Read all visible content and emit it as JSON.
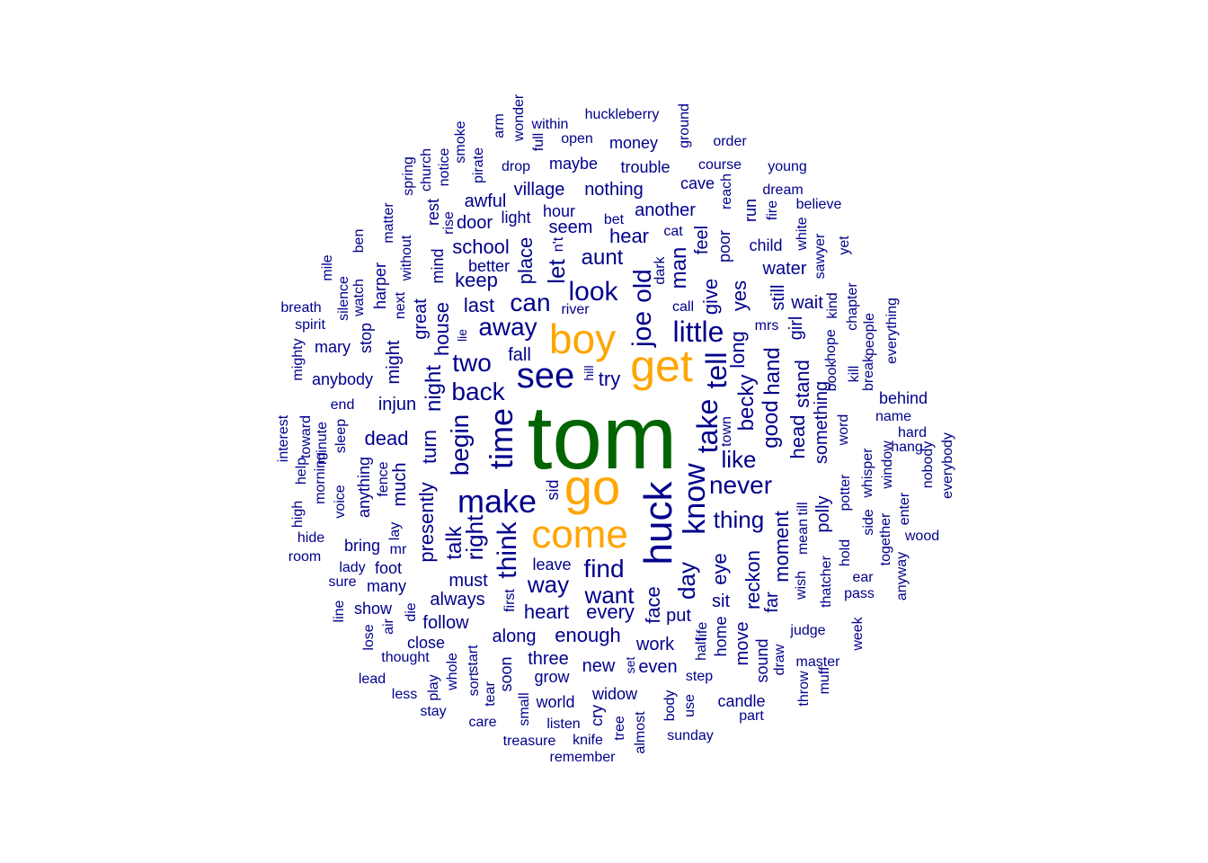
{
  "colors": {
    "top": "#006400",
    "high": "#FFA500",
    "rest": "#00008B"
  },
  "words": [
    {
      "text": "tom",
      "tier": "top"
    },
    {
      "text": "get",
      "tier": "high"
    },
    {
      "text": "go",
      "tier": "high"
    },
    {
      "text": "come",
      "tier": "high"
    },
    {
      "text": "boy",
      "tier": "high"
    },
    {
      "text": "huck",
      "tier": "rest"
    },
    {
      "text": "see",
      "tier": "rest"
    },
    {
      "text": "make",
      "tier": "rest"
    },
    {
      "text": "know",
      "tier": "rest"
    },
    {
      "text": "time",
      "tier": "rest"
    },
    {
      "text": "take",
      "tier": "rest"
    },
    {
      "text": "tell",
      "tier": "rest"
    },
    {
      "text": "joe",
      "tier": "rest"
    },
    {
      "text": "old",
      "tier": "rest"
    },
    {
      "text": "little",
      "tier": "rest"
    },
    {
      "text": "think",
      "tier": "rest"
    },
    {
      "text": "look",
      "tier": "rest"
    },
    {
      "text": "can",
      "tier": "rest"
    },
    {
      "text": "away",
      "tier": "rest"
    },
    {
      "text": "two",
      "tier": "rest"
    },
    {
      "text": "back",
      "tier": "rest"
    },
    {
      "text": "begin",
      "tier": "rest"
    },
    {
      "text": "like",
      "tier": "rest"
    },
    {
      "text": "never",
      "tier": "rest"
    },
    {
      "text": "find",
      "tier": "rest"
    },
    {
      "text": "way",
      "tier": "rest"
    },
    {
      "text": "right",
      "tier": "rest"
    },
    {
      "text": "want",
      "tier": "rest"
    },
    {
      "text": "thing",
      "tier": "rest"
    },
    {
      "text": "good",
      "tier": "rest"
    },
    {
      "text": "hand",
      "tier": "rest"
    },
    {
      "text": "becky",
      "tier": "rest"
    },
    {
      "text": "long",
      "tier": "rest"
    },
    {
      "text": "yes",
      "tier": "rest"
    },
    {
      "text": "give",
      "tier": "rest"
    },
    {
      "text": "man",
      "tier": "rest"
    },
    {
      "text": "let",
      "tier": "rest"
    },
    {
      "text": "aunt",
      "tier": "rest"
    },
    {
      "text": "hear",
      "tier": "rest"
    },
    {
      "text": "night",
      "tier": "rest"
    },
    {
      "text": "turn",
      "tier": "rest"
    },
    {
      "text": "talk",
      "tier": "rest"
    },
    {
      "text": "day",
      "tier": "rest"
    },
    {
      "text": "face",
      "tier": "rest"
    },
    {
      "text": "every",
      "tier": "rest"
    },
    {
      "text": "heart",
      "tier": "rest"
    },
    {
      "text": "head",
      "tier": "rest"
    },
    {
      "text": "stand",
      "tier": "rest"
    },
    {
      "text": "moment",
      "tier": "rest"
    },
    {
      "text": "reckon",
      "tier": "rest"
    },
    {
      "text": "eye",
      "tier": "rest"
    },
    {
      "text": "place",
      "tier": "rest"
    },
    {
      "text": "school",
      "tier": "rest"
    },
    {
      "text": "keep",
      "tier": "rest"
    },
    {
      "text": "last",
      "tier": "rest"
    },
    {
      "text": "presently",
      "tier": "rest"
    },
    {
      "text": "house",
      "tier": "rest"
    },
    {
      "text": "dead",
      "tier": "rest"
    },
    {
      "text": "injun",
      "tier": "rest"
    },
    {
      "text": "much",
      "tier": "rest"
    },
    {
      "text": "great",
      "tier": "rest"
    },
    {
      "text": "might",
      "tier": "rest"
    },
    {
      "text": "try",
      "tier": "rest"
    },
    {
      "text": "fall",
      "tier": "rest"
    },
    {
      "text": "sid",
      "tier": "rest"
    },
    {
      "text": "must",
      "tier": "rest"
    },
    {
      "text": "always",
      "tier": "rest"
    },
    {
      "text": "leave",
      "tier": "rest"
    },
    {
      "text": "follow",
      "tier": "rest"
    },
    {
      "text": "along",
      "tier": "rest"
    },
    {
      "text": "enough",
      "tier": "rest"
    },
    {
      "text": "work",
      "tier": "rest"
    },
    {
      "text": "three",
      "tier": "rest"
    },
    {
      "text": "new",
      "tier": "rest"
    },
    {
      "text": "even",
      "tier": "rest"
    },
    {
      "text": "put",
      "tier": "rest"
    },
    {
      "text": "sit",
      "tier": "rest"
    },
    {
      "text": "far",
      "tier": "rest"
    },
    {
      "text": "something",
      "tier": "rest"
    },
    {
      "text": "polly",
      "tier": "rest"
    },
    {
      "text": "still",
      "tier": "rest"
    },
    {
      "text": "girl",
      "tier": "rest"
    },
    {
      "text": "wait",
      "tier": "rest"
    },
    {
      "text": "water",
      "tier": "rest"
    },
    {
      "text": "child",
      "tier": "rest"
    },
    {
      "text": "poor",
      "tier": "rest"
    },
    {
      "text": "feel",
      "tier": "rest"
    },
    {
      "text": "another",
      "tier": "rest"
    },
    {
      "text": "nothing",
      "tier": "rest"
    },
    {
      "text": "village",
      "tier": "rest"
    },
    {
      "text": "awful",
      "tier": "rest"
    },
    {
      "text": "door",
      "tier": "rest"
    },
    {
      "text": "light",
      "tier": "rest"
    },
    {
      "text": "hour",
      "tier": "rest"
    },
    {
      "text": "seem",
      "tier": "rest"
    },
    {
      "text": "better",
      "tier": "rest"
    },
    {
      "text": "mind",
      "tier": "rest"
    },
    {
      "text": "rest",
      "tier": "rest"
    },
    {
      "text": "rise",
      "tier": "rest"
    },
    {
      "text": "n't",
      "tier": "rest"
    },
    {
      "text": "bet",
      "tier": "rest"
    },
    {
      "text": "cat",
      "tier": "rest"
    },
    {
      "text": "dark",
      "tier": "rest"
    },
    {
      "text": "cave",
      "tier": "rest"
    },
    {
      "text": "course",
      "tier": "rest"
    },
    {
      "text": "trouble",
      "tier": "rest"
    },
    {
      "text": "maybe",
      "tier": "rest"
    },
    {
      "text": "drop",
      "tier": "rest"
    },
    {
      "text": "money",
      "tier": "rest"
    },
    {
      "text": "open",
      "tier": "rest"
    },
    {
      "text": "within",
      "tier": "rest"
    },
    {
      "text": "huckleberry",
      "tier": "rest"
    },
    {
      "text": "ground",
      "tier": "rest"
    },
    {
      "text": "order",
      "tier": "rest"
    },
    {
      "text": "young",
      "tier": "rest"
    },
    {
      "text": "dream",
      "tier": "rest"
    },
    {
      "text": "believe",
      "tier": "rest"
    },
    {
      "text": "reach",
      "tier": "rest"
    },
    {
      "text": "run",
      "tier": "rest"
    },
    {
      "text": "fire",
      "tier": "rest"
    },
    {
      "text": "white",
      "tier": "rest"
    },
    {
      "text": "sawyer",
      "tier": "rest"
    },
    {
      "text": "yet",
      "tier": "rest"
    },
    {
      "text": "chapter",
      "tier": "rest"
    },
    {
      "text": "kind",
      "tier": "rest"
    },
    {
      "text": "hope",
      "tier": "rest"
    },
    {
      "text": "book",
      "tier": "rest"
    },
    {
      "text": "kill",
      "tier": "rest"
    },
    {
      "text": "people",
      "tier": "rest"
    },
    {
      "text": "break",
      "tier": "rest"
    },
    {
      "text": "everything",
      "tier": "rest"
    },
    {
      "text": "behind",
      "tier": "rest"
    },
    {
      "text": "name",
      "tier": "rest"
    },
    {
      "text": "hard",
      "tier": "rest"
    },
    {
      "text": "hang",
      "tier": "rest"
    },
    {
      "text": "word",
      "tier": "rest"
    },
    {
      "text": "whisper",
      "tier": "rest"
    },
    {
      "text": "side",
      "tier": "rest"
    },
    {
      "text": "window",
      "tier": "rest"
    },
    {
      "text": "enter",
      "tier": "rest"
    },
    {
      "text": "nobody",
      "tier": "rest"
    },
    {
      "text": "everybody",
      "tier": "rest"
    },
    {
      "text": "wood",
      "tier": "rest"
    },
    {
      "text": "together",
      "tier": "rest"
    },
    {
      "text": "anyway",
      "tier": "rest"
    },
    {
      "text": "ear",
      "tier": "rest"
    },
    {
      "text": "pass",
      "tier": "rest"
    },
    {
      "text": "potter",
      "tier": "rest"
    },
    {
      "text": "hold",
      "tier": "rest"
    },
    {
      "text": "thatcher",
      "tier": "rest"
    },
    {
      "text": "till",
      "tier": "rest"
    },
    {
      "text": "mean",
      "tier": "rest"
    },
    {
      "text": "wish",
      "tier": "rest"
    },
    {
      "text": "mrs",
      "tier": "rest"
    },
    {
      "text": "town",
      "tier": "rest"
    },
    {
      "text": "week",
      "tier": "rest"
    },
    {
      "text": "judge",
      "tier": "rest"
    },
    {
      "text": "master",
      "tier": "rest"
    },
    {
      "text": "muff",
      "tier": "rest"
    },
    {
      "text": "throw",
      "tier": "rest"
    },
    {
      "text": "draw",
      "tier": "rest"
    },
    {
      "text": "sound",
      "tier": "rest"
    },
    {
      "text": "move",
      "tier": "rest"
    },
    {
      "text": "home",
      "tier": "rest"
    },
    {
      "text": "life",
      "tier": "rest"
    },
    {
      "text": "half",
      "tier": "rest"
    },
    {
      "text": "call",
      "tier": "rest"
    },
    {
      "text": "candle",
      "tier": "rest"
    },
    {
      "text": "part",
      "tier": "rest"
    },
    {
      "text": "step",
      "tier": "rest"
    },
    {
      "text": "use",
      "tier": "rest"
    },
    {
      "text": "body",
      "tier": "rest"
    },
    {
      "text": "sunday",
      "tier": "rest"
    },
    {
      "text": "almost",
      "tier": "rest"
    },
    {
      "text": "tree",
      "tier": "rest"
    },
    {
      "text": "set",
      "tier": "rest"
    },
    {
      "text": "widow",
      "tier": "rest"
    },
    {
      "text": "cry",
      "tier": "rest"
    },
    {
      "text": "world",
      "tier": "rest"
    },
    {
      "text": "grow",
      "tier": "rest"
    },
    {
      "text": "knife",
      "tier": "rest"
    },
    {
      "text": "listen",
      "tier": "rest"
    },
    {
      "text": "treasure",
      "tier": "rest"
    },
    {
      "text": "remember",
      "tier": "rest"
    },
    {
      "text": "small",
      "tier": "rest"
    },
    {
      "text": "care",
      "tier": "rest"
    },
    {
      "text": "soon",
      "tier": "rest"
    },
    {
      "text": "tear",
      "tier": "rest"
    },
    {
      "text": "start",
      "tier": "rest"
    },
    {
      "text": "sort",
      "tier": "rest"
    },
    {
      "text": "whole",
      "tier": "rest"
    },
    {
      "text": "stay",
      "tier": "rest"
    },
    {
      "text": "play",
      "tier": "rest"
    },
    {
      "text": "less",
      "tier": "rest"
    },
    {
      "text": "thought",
      "tier": "rest"
    },
    {
      "text": "lead",
      "tier": "rest"
    },
    {
      "text": "close",
      "tier": "rest"
    },
    {
      "text": "lose",
      "tier": "rest"
    },
    {
      "text": "air",
      "tier": "rest"
    },
    {
      "text": "die",
      "tier": "rest"
    },
    {
      "text": "show",
      "tier": "rest"
    },
    {
      "text": "line",
      "tier": "rest"
    },
    {
      "text": "first",
      "tier": "rest"
    },
    {
      "text": "many",
      "tier": "rest"
    },
    {
      "text": "foot",
      "tier": "rest"
    },
    {
      "text": "sure",
      "tier": "rest"
    },
    {
      "text": "lady",
      "tier": "rest"
    },
    {
      "text": "mr",
      "tier": "rest"
    },
    {
      "text": "lay",
      "tier": "rest"
    },
    {
      "text": "bring",
      "tier": "rest"
    },
    {
      "text": "room",
      "tier": "rest"
    },
    {
      "text": "hide",
      "tier": "rest"
    },
    {
      "text": "high",
      "tier": "rest"
    },
    {
      "text": "voice",
      "tier": "rest"
    },
    {
      "text": "anything",
      "tier": "rest"
    },
    {
      "text": "fence",
      "tier": "rest"
    },
    {
      "text": "morning",
      "tier": "rest"
    },
    {
      "text": "minute",
      "tier": "rest"
    },
    {
      "text": "sleep",
      "tier": "rest"
    },
    {
      "text": "help",
      "tier": "rest"
    },
    {
      "text": "toward",
      "tier": "rest"
    },
    {
      "text": "interest",
      "tier": "rest"
    },
    {
      "text": "end",
      "tier": "rest"
    },
    {
      "text": "anybody",
      "tier": "rest"
    },
    {
      "text": "mighty",
      "tier": "rest"
    },
    {
      "text": "mary",
      "tier": "rest"
    },
    {
      "text": "spirit",
      "tier": "rest"
    },
    {
      "text": "breath",
      "tier": "rest"
    },
    {
      "text": "stop",
      "tier": "rest"
    },
    {
      "text": "silence",
      "tier": "rest"
    },
    {
      "text": "watch",
      "tier": "rest"
    },
    {
      "text": "ben",
      "tier": "rest"
    },
    {
      "text": "mile",
      "tier": "rest"
    },
    {
      "text": "harper",
      "tier": "rest"
    },
    {
      "text": "next",
      "tier": "rest"
    },
    {
      "text": "matter",
      "tier": "rest"
    },
    {
      "text": "without",
      "tier": "rest"
    },
    {
      "text": "spring",
      "tier": "rest"
    },
    {
      "text": "church",
      "tier": "rest"
    },
    {
      "text": "notice",
      "tier": "rest"
    },
    {
      "text": "smoke",
      "tier": "rest"
    },
    {
      "text": "pirate",
      "tier": "rest"
    },
    {
      "text": "arm",
      "tier": "rest"
    },
    {
      "text": "wonder",
      "tier": "rest"
    },
    {
      "text": "full",
      "tier": "rest"
    },
    {
      "text": "river",
      "tier": "rest"
    },
    {
      "text": "lie",
      "tier": "rest"
    },
    {
      "text": "hill",
      "tier": "rest"
    }
  ]
}
